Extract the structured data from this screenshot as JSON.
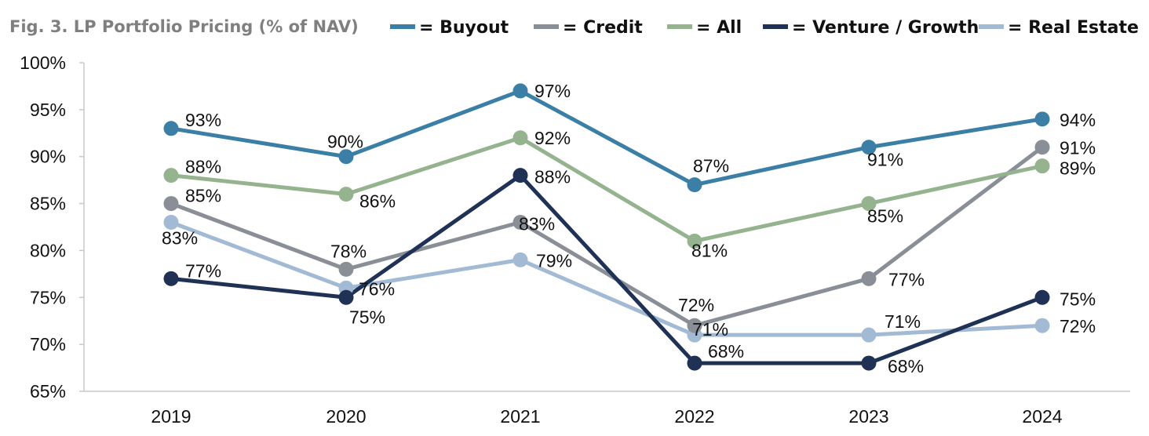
{
  "chart_data": {
    "type": "line",
    "title": "Fig. 3. LP Portfolio Pricing (% of NAV)",
    "xlabel": "",
    "ylabel": "",
    "categories": [
      "2019",
      "2020",
      "2021",
      "2022",
      "2023",
      "2024"
    ],
    "y_ticks": [
      "65%",
      "70%",
      "75%",
      "80%",
      "85%",
      "90%",
      "95%",
      "100%"
    ],
    "ylim": [
      65,
      100
    ],
    "grid": false,
    "legend_position": "top",
    "legend_prefix": "= ",
    "series": [
      {
        "name": "Buyout",
        "color": "#3b7fa6",
        "values": [
          93,
          90,
          97,
          87,
          91,
          94
        ],
        "labels": [
          "93%",
          "90%",
          "97%",
          "87%",
          "91%",
          "94%"
        ]
      },
      {
        "name": "Credit",
        "color": "#8a8f97",
        "values": [
          85,
          78,
          83,
          72,
          77,
          91
        ],
        "labels": [
          "85%",
          "78%",
          "83%",
          "72%",
          "77%",
          "91%"
        ]
      },
      {
        "name": "All",
        "color": "#94b38e",
        "values": [
          88,
          86,
          92,
          81,
          85,
          89
        ],
        "labels": [
          "88%",
          "86%",
          "92%",
          "81%",
          "85%",
          "89%"
        ]
      },
      {
        "name": "Venture / Growth",
        "color": "#1f3256",
        "values": [
          77,
          75,
          88,
          68,
          68,
          75
        ],
        "labels": [
          "77%",
          "75%",
          "88%",
          "68%",
          "68%",
          "75%"
        ]
      },
      {
        "name": "Real Estate",
        "color": "#a2bad4",
        "values": [
          83,
          76,
          79,
          71,
          71,
          72
        ],
        "labels": [
          "83%",
          "76%",
          "79%",
          "71%",
          "71%",
          "72%"
        ]
      }
    ]
  }
}
